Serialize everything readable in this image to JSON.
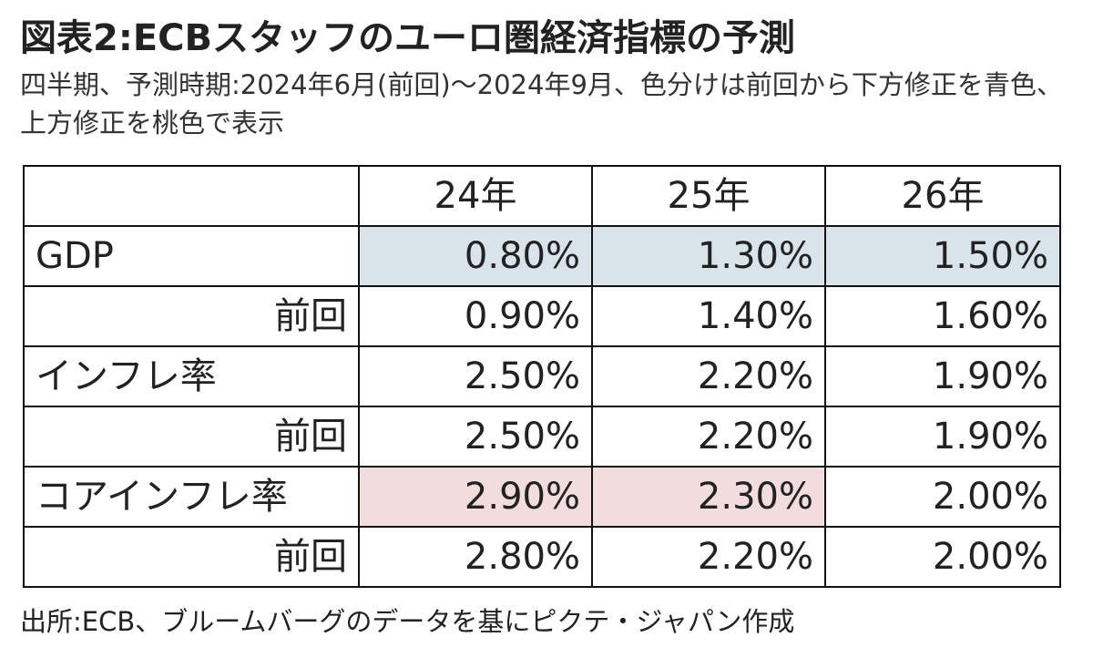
{
  "title": "図表2:ECBスタッフのユーロ圏経済指標の予測",
  "subtitle": "四半期、予測時期:2024年6月(前回)〜2024年9月、色分けは前回から下方修正を青色、上方修正を桃色で表示",
  "source": "出所:ECB、ブルームバーグのデータを基にピクテ・ジャパン作成",
  "colors": {
    "downward_revision": "#d8e4ea",
    "upward_revision": "#f2dcdc",
    "border": "#111111"
  },
  "chart_data": {
    "type": "table",
    "columns": [
      "",
      "24年",
      "25年",
      "26年"
    ],
    "rows": [
      {
        "label": "GDP",
        "values": [
          "0.80%",
          "1.30%",
          "1.50%"
        ],
        "highlight": [
          "down",
          "down",
          "down"
        ]
      },
      {
        "label": "前回",
        "values": [
          "0.90%",
          "1.40%",
          "1.60%"
        ],
        "highlight": [
          "",
          "",
          ""
        ]
      },
      {
        "label": "インフレ率",
        "values": [
          "2.50%",
          "2.20%",
          "1.90%"
        ],
        "highlight": [
          "",
          "",
          ""
        ]
      },
      {
        "label": "前回",
        "values": [
          "2.50%",
          "2.20%",
          "1.90%"
        ],
        "highlight": [
          "",
          "",
          ""
        ]
      },
      {
        "label": "コアインフレ率",
        "values": [
          "2.90%",
          "2.30%",
          "2.00%"
        ],
        "highlight": [
          "up",
          "up",
          ""
        ]
      },
      {
        "label": "前回",
        "values": [
          "2.80%",
          "2.20%",
          "2.00%"
        ],
        "highlight": [
          "",
          "",
          ""
        ]
      }
    ]
  }
}
